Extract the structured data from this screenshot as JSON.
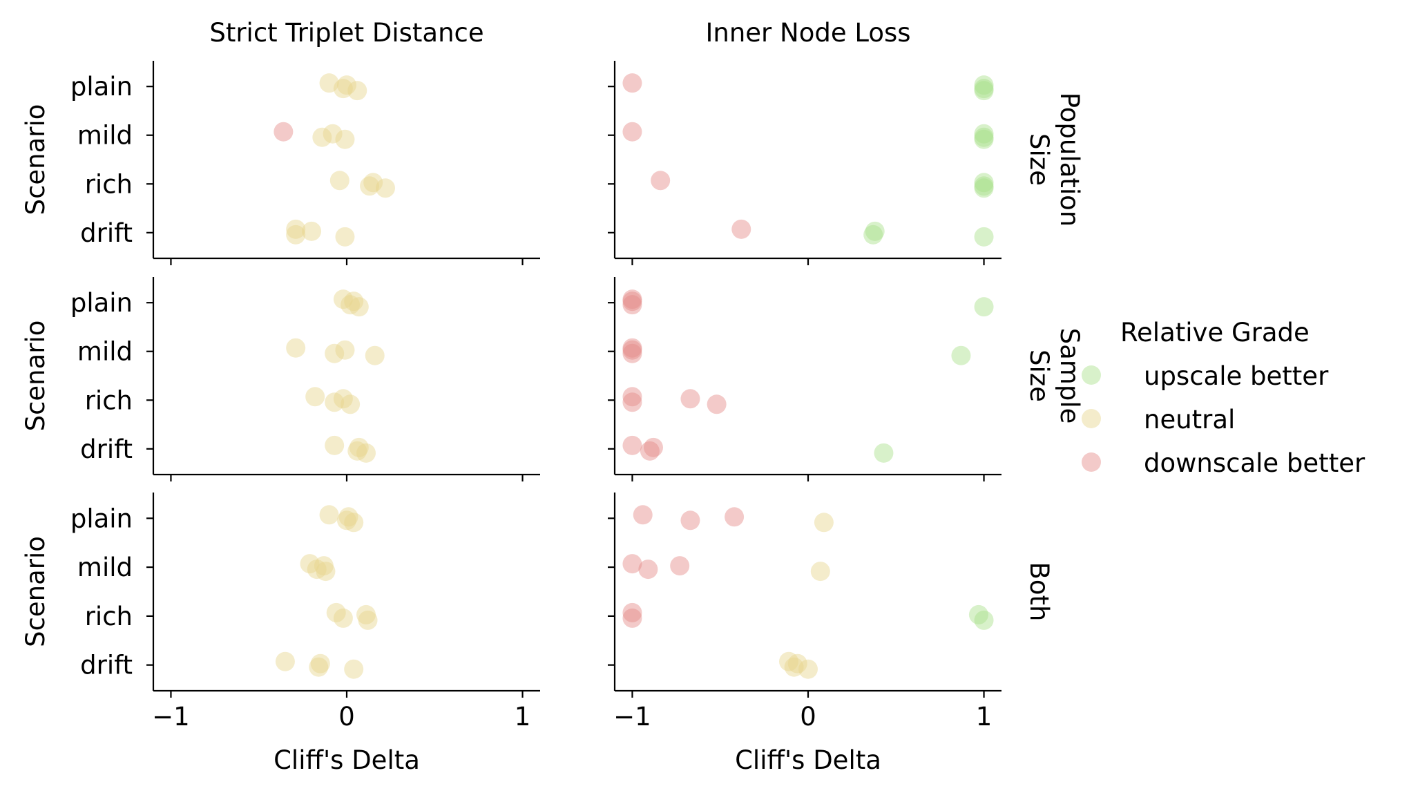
{
  "chart_data": {
    "type": "scatter",
    "column_titles": [
      "Strict Triplet Distance",
      "Inner Node Loss"
    ],
    "row_titles": [
      [
        "Population",
        "Size"
      ],
      [
        "Sample",
        "Size"
      ],
      [
        "Both"
      ]
    ],
    "xlabel": "Cliff's Delta",
    "ylabel": "Scenario",
    "xlim": [
      -1.1,
      1.1
    ],
    "xticks": [
      -1,
      0,
      1
    ],
    "xtick_labels": [
      "−1",
      "0",
      "1"
    ],
    "categories": [
      "plain",
      "mild",
      "rich",
      "drift"
    ],
    "grid": false,
    "legend": {
      "title": "Relative Grade",
      "placement": "right",
      "entries": [
        {
          "label": "upscale better",
          "color": "#a8e08a"
        },
        {
          "label": "neutral",
          "color": "#e6d48c"
        },
        {
          "label": "downscale better",
          "color": "#e48a88"
        }
      ]
    },
    "panels": [
      {
        "row": 0,
        "col": 0,
        "points": [
          {
            "category": "plain",
            "x": -0.1,
            "grade": "neutral"
          },
          {
            "category": "plain",
            "x": -0.02,
            "grade": "neutral"
          },
          {
            "category": "plain",
            "x": 0.0,
            "grade": "neutral"
          },
          {
            "category": "plain",
            "x": 0.06,
            "grade": "neutral"
          },
          {
            "category": "mild",
            "x": -0.36,
            "grade": "downscale better"
          },
          {
            "category": "mild",
            "x": -0.14,
            "grade": "neutral"
          },
          {
            "category": "mild",
            "x": -0.08,
            "grade": "neutral"
          },
          {
            "category": "mild",
            "x": -0.01,
            "grade": "neutral"
          },
          {
            "category": "rich",
            "x": -0.04,
            "grade": "neutral"
          },
          {
            "category": "rich",
            "x": 0.13,
            "grade": "neutral"
          },
          {
            "category": "rich",
            "x": 0.15,
            "grade": "neutral"
          },
          {
            "category": "rich",
            "x": 0.22,
            "grade": "neutral"
          },
          {
            "category": "drift",
            "x": -0.29,
            "grade": "neutral"
          },
          {
            "category": "drift",
            "x": -0.29,
            "grade": "neutral"
          },
          {
            "category": "drift",
            "x": -0.2,
            "grade": "neutral"
          },
          {
            "category": "drift",
            "x": -0.01,
            "grade": "neutral"
          }
        ]
      },
      {
        "row": 0,
        "col": 1,
        "points": [
          {
            "category": "plain",
            "x": -1.0,
            "grade": "downscale better"
          },
          {
            "category": "plain",
            "x": 1.0,
            "grade": "upscale better"
          },
          {
            "category": "plain",
            "x": 1.0,
            "grade": "upscale better"
          },
          {
            "category": "plain",
            "x": 1.0,
            "grade": "upscale better"
          },
          {
            "category": "mild",
            "x": -1.0,
            "grade": "downscale better"
          },
          {
            "category": "mild",
            "x": 1.0,
            "grade": "upscale better"
          },
          {
            "category": "mild",
            "x": 1.0,
            "grade": "upscale better"
          },
          {
            "category": "mild",
            "x": 1.0,
            "grade": "upscale better"
          },
          {
            "category": "rich",
            "x": -0.84,
            "grade": "downscale better"
          },
          {
            "category": "rich",
            "x": 1.0,
            "grade": "upscale better"
          },
          {
            "category": "rich",
            "x": 1.0,
            "grade": "upscale better"
          },
          {
            "category": "rich",
            "x": 1.0,
            "grade": "upscale better"
          },
          {
            "category": "drift",
            "x": -0.38,
            "grade": "downscale better"
          },
          {
            "category": "drift",
            "x": 0.37,
            "grade": "upscale better"
          },
          {
            "category": "drift",
            "x": 0.38,
            "grade": "upscale better"
          },
          {
            "category": "drift",
            "x": 1.0,
            "grade": "upscale better"
          }
        ]
      },
      {
        "row": 1,
        "col": 0,
        "points": [
          {
            "category": "plain",
            "x": -0.02,
            "grade": "neutral"
          },
          {
            "category": "plain",
            "x": 0.02,
            "grade": "neutral"
          },
          {
            "category": "plain",
            "x": 0.04,
            "grade": "neutral"
          },
          {
            "category": "plain",
            "x": 0.07,
            "grade": "neutral"
          },
          {
            "category": "mild",
            "x": -0.29,
            "grade": "neutral"
          },
          {
            "category": "mild",
            "x": -0.07,
            "grade": "neutral"
          },
          {
            "category": "mild",
            "x": -0.01,
            "grade": "neutral"
          },
          {
            "category": "mild",
            "x": 0.16,
            "grade": "neutral"
          },
          {
            "category": "rich",
            "x": -0.18,
            "grade": "neutral"
          },
          {
            "category": "rich",
            "x": -0.07,
            "grade": "neutral"
          },
          {
            "category": "rich",
            "x": -0.02,
            "grade": "neutral"
          },
          {
            "category": "rich",
            "x": 0.02,
            "grade": "neutral"
          },
          {
            "category": "drift",
            "x": -0.07,
            "grade": "neutral"
          },
          {
            "category": "drift",
            "x": 0.06,
            "grade": "neutral"
          },
          {
            "category": "drift",
            "x": 0.07,
            "grade": "neutral"
          },
          {
            "category": "drift",
            "x": 0.11,
            "grade": "neutral"
          }
        ]
      },
      {
        "row": 1,
        "col": 1,
        "points": [
          {
            "category": "plain",
            "x": -1.0,
            "grade": "downscale better"
          },
          {
            "category": "plain",
            "x": -1.0,
            "grade": "downscale better"
          },
          {
            "category": "plain",
            "x": -1.0,
            "grade": "downscale better"
          },
          {
            "category": "plain",
            "x": 1.0,
            "grade": "upscale better"
          },
          {
            "category": "mild",
            "x": -1.0,
            "grade": "downscale better"
          },
          {
            "category": "mild",
            "x": -1.0,
            "grade": "downscale better"
          },
          {
            "category": "mild",
            "x": -1.0,
            "grade": "downscale better"
          },
          {
            "category": "mild",
            "x": 0.87,
            "grade": "upscale better"
          },
          {
            "category": "rich",
            "x": -1.0,
            "grade": "downscale better"
          },
          {
            "category": "rich",
            "x": -1.0,
            "grade": "downscale better"
          },
          {
            "category": "rich",
            "x": -0.67,
            "grade": "downscale better"
          },
          {
            "category": "rich",
            "x": -0.52,
            "grade": "downscale better"
          },
          {
            "category": "drift",
            "x": -1.0,
            "grade": "downscale better"
          },
          {
            "category": "drift",
            "x": -0.9,
            "grade": "downscale better"
          },
          {
            "category": "drift",
            "x": -0.88,
            "grade": "downscale better"
          },
          {
            "category": "drift",
            "x": 0.43,
            "grade": "upscale better"
          }
        ]
      },
      {
        "row": 2,
        "col": 0,
        "points": [
          {
            "category": "plain",
            "x": -0.1,
            "grade": "neutral"
          },
          {
            "category": "plain",
            "x": 0.0,
            "grade": "neutral"
          },
          {
            "category": "plain",
            "x": 0.01,
            "grade": "neutral"
          },
          {
            "category": "plain",
            "x": 0.04,
            "grade": "neutral"
          },
          {
            "category": "mild",
            "x": -0.21,
            "grade": "neutral"
          },
          {
            "category": "mild",
            "x": -0.17,
            "grade": "neutral"
          },
          {
            "category": "mild",
            "x": -0.13,
            "grade": "neutral"
          },
          {
            "category": "mild",
            "x": -0.12,
            "grade": "neutral"
          },
          {
            "category": "rich",
            "x": -0.06,
            "grade": "neutral"
          },
          {
            "category": "rich",
            "x": -0.02,
            "grade": "neutral"
          },
          {
            "category": "rich",
            "x": 0.11,
            "grade": "neutral"
          },
          {
            "category": "rich",
            "x": 0.12,
            "grade": "neutral"
          },
          {
            "category": "drift",
            "x": -0.35,
            "grade": "neutral"
          },
          {
            "category": "drift",
            "x": -0.16,
            "grade": "neutral"
          },
          {
            "category": "drift",
            "x": -0.15,
            "grade": "neutral"
          },
          {
            "category": "drift",
            "x": 0.04,
            "grade": "neutral"
          }
        ]
      },
      {
        "row": 2,
        "col": 1,
        "points": [
          {
            "category": "plain",
            "x": -0.94,
            "grade": "downscale better"
          },
          {
            "category": "plain",
            "x": -0.67,
            "grade": "downscale better"
          },
          {
            "category": "plain",
            "x": -0.42,
            "grade": "downscale better"
          },
          {
            "category": "plain",
            "x": 0.09,
            "grade": "neutral"
          },
          {
            "category": "mild",
            "x": -1.0,
            "grade": "downscale better"
          },
          {
            "category": "mild",
            "x": -0.91,
            "grade": "downscale better"
          },
          {
            "category": "mild",
            "x": -0.73,
            "grade": "downscale better"
          },
          {
            "category": "mild",
            "x": 0.07,
            "grade": "neutral"
          },
          {
            "category": "rich",
            "x": -1.0,
            "grade": "downscale better"
          },
          {
            "category": "rich",
            "x": -1.0,
            "grade": "downscale better"
          },
          {
            "category": "rich",
            "x": 0.97,
            "grade": "upscale better"
          },
          {
            "category": "rich",
            "x": 1.0,
            "grade": "upscale better"
          },
          {
            "category": "drift",
            "x": -0.11,
            "grade": "neutral"
          },
          {
            "category": "drift",
            "x": -0.08,
            "grade": "neutral"
          },
          {
            "category": "drift",
            "x": -0.06,
            "grade": "neutral"
          },
          {
            "category": "drift",
            "x": 0.0,
            "grade": "neutral"
          }
        ]
      }
    ]
  }
}
